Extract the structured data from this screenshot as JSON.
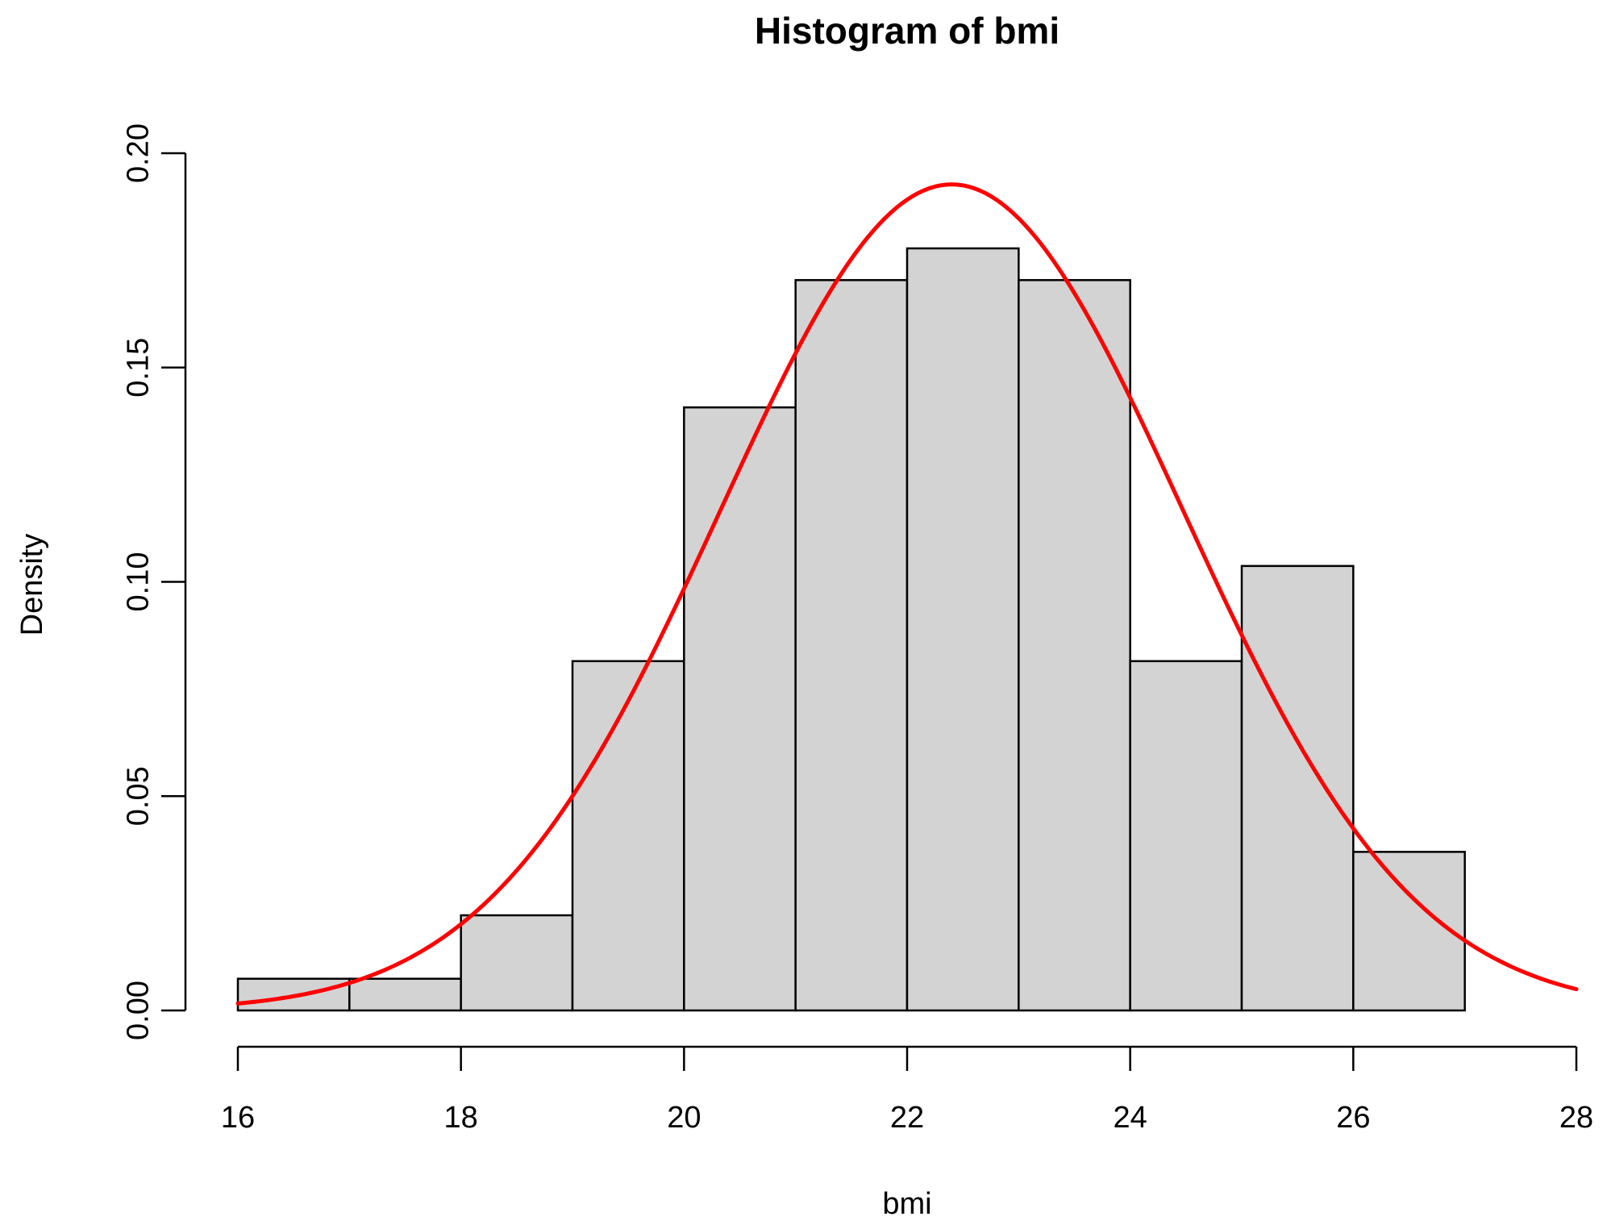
{
  "chart_data": {
    "type": "bar",
    "title": "Histogram of bmi",
    "xlabel": "bmi",
    "ylabel": "Density",
    "xlim": [
      16,
      28
    ],
    "ylim": [
      0,
      0.2
    ],
    "x_ticks": [
      "16",
      "18",
      "20",
      "22",
      "24",
      "26",
      "28"
    ],
    "y_ticks": [
      "0.00",
      "0.05",
      "0.10",
      "0.15",
      "0.20"
    ],
    "bins": [
      {
        "start": 16,
        "end": 17,
        "density": 0.0074
      },
      {
        "start": 17,
        "end": 18,
        "density": 0.0074
      },
      {
        "start": 18,
        "end": 19,
        "density": 0.0222
      },
      {
        "start": 19,
        "end": 20,
        "density": 0.0815
      },
      {
        "start": 20,
        "end": 21,
        "density": 0.1407
      },
      {
        "start": 21,
        "end": 22,
        "density": 0.1704
      },
      {
        "start": 22,
        "end": 23,
        "density": 0.1778
      },
      {
        "start": 23,
        "end": 24,
        "density": 0.1704
      },
      {
        "start": 24,
        "end": 25,
        "density": 0.0815
      },
      {
        "start": 25,
        "end": 26,
        "density": 0.1037
      },
      {
        "start": 26,
        "end": 27,
        "density": 0.037
      }
    ],
    "curve": {
      "type": "normal-density",
      "mean": 22.4,
      "sd": 2.07,
      "x_range": [
        16,
        28
      ]
    },
    "colors": {
      "bar_fill": "#d3d3d3",
      "bar_stroke": "#000000",
      "curve": "#ff0000"
    },
    "grid": false,
    "legend": "none"
  }
}
